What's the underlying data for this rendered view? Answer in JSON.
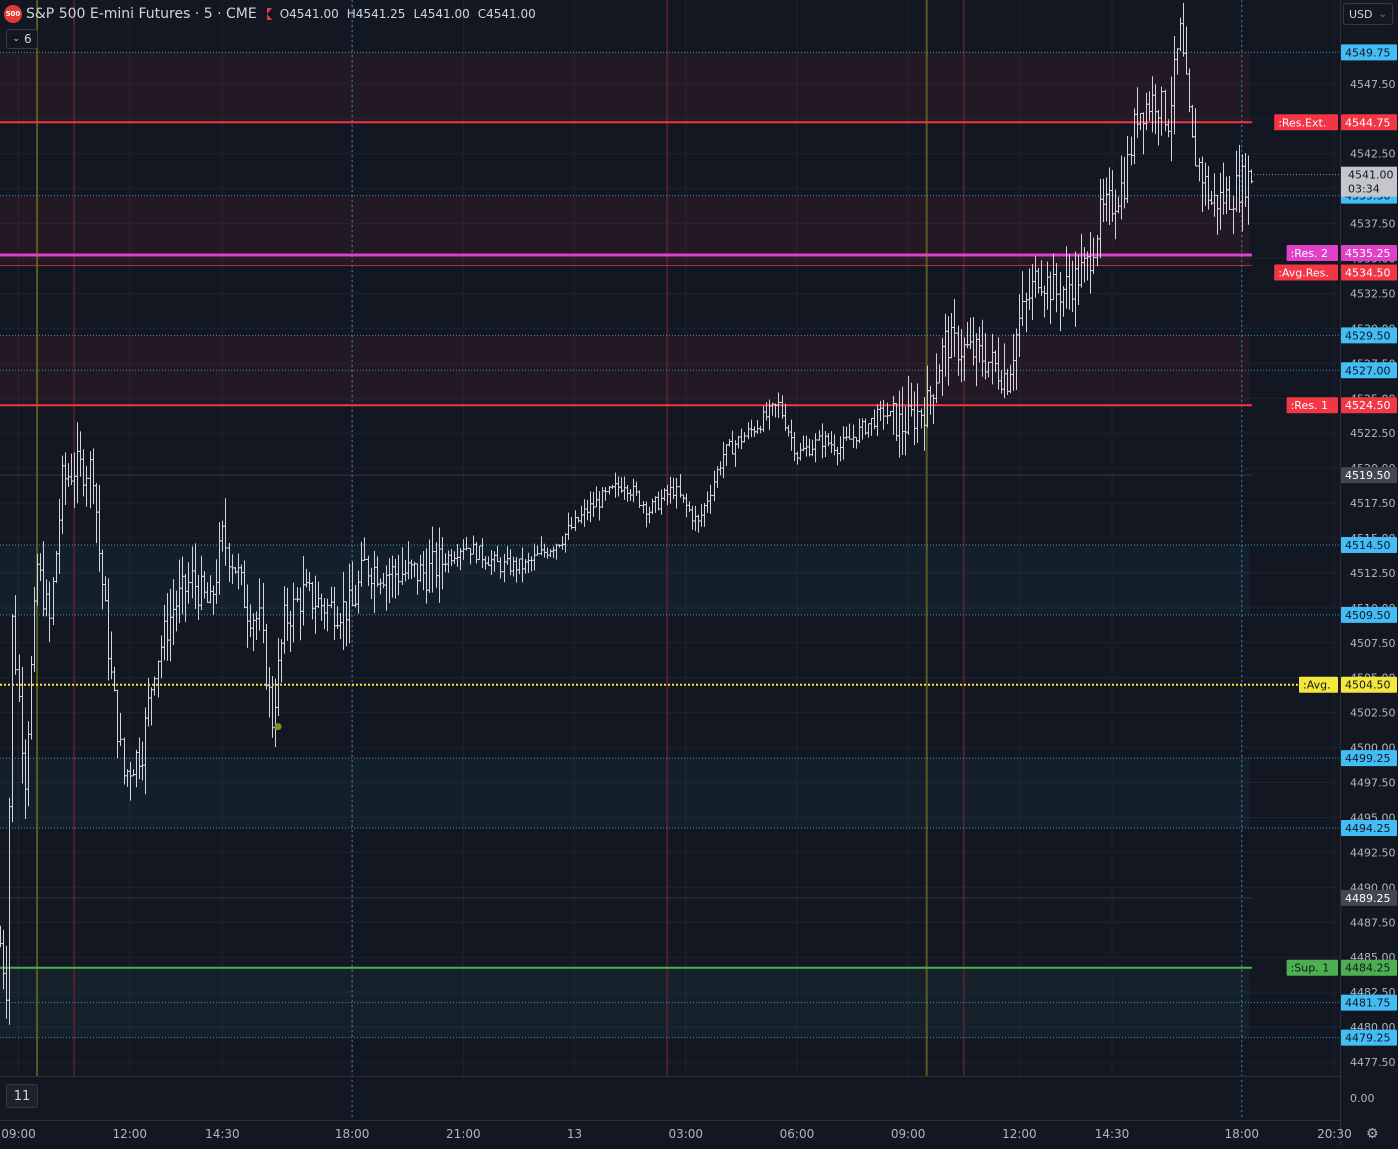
{
  "header": {
    "symbol_badge": "500",
    "title": "S&P 500 E-mini Futures · 5 · CME",
    "ohlc": [
      {
        "k": "O",
        "v": "4541.00"
      },
      {
        "k": "H",
        "v": "4541.25"
      },
      {
        "k": "L",
        "v": "4541.00"
      },
      {
        "k": "C",
        "v": "4541.00"
      }
    ],
    "indicators_toggle": "6",
    "currency": "USD",
    "currency_caret": "⌄"
  },
  "bottom_button": "11",
  "settings_icon": "⚙",
  "chart_data": {
    "type": "bar",
    "subtype": "ohlc",
    "title": "S&P 500 E-mini Futures · 5 · CME",
    "bar_color": "#d1d4dc",
    "ylim": [
      4476.5,
      4553.5
    ],
    "xlim": [
      "08:30",
      "20:30 (day 13)"
    ],
    "x_ticks": [
      "09:00",
      "12:00",
      "14:30",
      "18:00",
      "21:00",
      "13",
      "03:00",
      "06:00",
      "09:00",
      "12:00",
      "14:30",
      "18:00",
      "20:30"
    ],
    "y_ticks": [
      "4477.50",
      "4480.00",
      "4482.50",
      "4485.00",
      "4487.50",
      "4490.00",
      "4492.50",
      "4495.00",
      "4497.50",
      "4500.00",
      "4502.50",
      "4505.00",
      "4507.50",
      "4510.00",
      "4512.50",
      "4515.00",
      "4517.50",
      "4520.00",
      "4522.50",
      "4525.00",
      "4527.50",
      "4530.00",
      "4532.50",
      "4535.00",
      "4537.50",
      "4540.00",
      "4542.50",
      "4545.00",
      "4547.50"
    ],
    "volume_axis_label": "0.00",
    "grid": true,
    "vertical_markers": [
      {
        "x": "09:30",
        "color": "#6b6a1e"
      },
      {
        "x": "10:30",
        "color": "#5a2430"
      },
      {
        "x": "03:00",
        "color": "#5a2430"
      },
      {
        "x": "09:30",
        "color": "#6b6a1e"
      },
      {
        "x": "10:30",
        "color": "#5a2430"
      }
    ],
    "session_dividers": [
      "18:00",
      "18:00"
    ],
    "zones": [
      {
        "from": 4544.75,
        "to": 4549.75,
        "color": "#f23645"
      },
      {
        "from": 4534.5,
        "to": 4539.5,
        "color": "#f23645"
      },
      {
        "from": 4524.5,
        "to": 4529.5,
        "color": "#f23645"
      },
      {
        "from": 4509.5,
        "to": 4514.5,
        "color": "#2a8fb5"
      },
      {
        "from": 4494.25,
        "to": 4499.25,
        "color": "#2a8fb5"
      },
      {
        "from": 4479.25,
        "to": 4484.25,
        "color": "#26a69a"
      }
    ],
    "levels": [
      {
        "value": 4549.75,
        "price_label": "4549.75",
        "color": "#42bdf5",
        "style": "dotted"
      },
      {
        "value": 4544.75,
        "price_label": "4544.75",
        "tag": ":Res.Ext.",
        "color": "#f23645",
        "style": "solid"
      },
      {
        "value": 4539.5,
        "price_label": "4539.50",
        "color": "#42bdf5",
        "style": "dotted"
      },
      {
        "value": 4535.25,
        "price_label": "4535.25",
        "tag": ":Res. 2",
        "color": "#e040c8",
        "style": "solid"
      },
      {
        "value": 4534.5,
        "price_label": "4534.50",
        "tag": ":Avg.Res.",
        "color": "#f23645",
        "style": "thin"
      },
      {
        "value": 4529.5,
        "price_label": "4529.50",
        "color": "#42bdf5",
        "style": "dotted"
      },
      {
        "value": 4527.0,
        "price_label": "4527.00",
        "color": "#42bdf5",
        "style": "dotted"
      },
      {
        "value": 4524.5,
        "price_label": "4524.50",
        "tag": ":Res. 1",
        "color": "#f23645",
        "style": "solid"
      },
      {
        "value": 4519.5,
        "price_label": "4519.50",
        "color": "#434651",
        "style": "thin"
      },
      {
        "value": 4514.5,
        "price_label": "4514.50",
        "color": "#42bdf5",
        "style": "dotted"
      },
      {
        "value": 4509.5,
        "price_label": "4509.50",
        "color": "#42bdf5",
        "style": "dotted"
      },
      {
        "value": 4504.5,
        "price_label": "4504.50",
        "tag": ":Avg.",
        "color": "#f5e63b",
        "style": "dotted"
      },
      {
        "value": 4499.25,
        "price_label": "4499.25",
        "color": "#42bdf5",
        "style": "dotted"
      },
      {
        "value": 4494.25,
        "price_label": "4494.25",
        "color": "#42bdf5",
        "style": "dotted"
      },
      {
        "value": 4489.25,
        "price_label": "4489.25",
        "color": "#434651",
        "style": "thin"
      },
      {
        "value": 4484.25,
        "price_label": "4484.25",
        "tag": ":Sup. 1",
        "color": "#4caf50",
        "style": "solid"
      },
      {
        "value": 4481.75,
        "price_label": "4481.75",
        "color": "#42bdf5",
        "style": "dotted"
      },
      {
        "value": 4479.25,
        "price_label": "4479.25",
        "color": "#42bdf5",
        "style": "dotted"
      }
    ],
    "current_price": {
      "value": 4541.0,
      "label": "4541.00",
      "countdown": "03:34"
    },
    "marker_point": {
      "x": "16:00",
      "y": 4501.5
    },
    "series": [
      {
        "description": "5-minute OHLC bars, approximate close path (09:00 day 12 to 18:15 day 13)",
        "close_path": [
          [
            "08:30",
            4486.0
          ],
          [
            "08:40",
            4483.0
          ],
          [
            "08:50",
            4509.0
          ],
          [
            "09:10",
            4498.0
          ],
          [
            "09:30",
            4513.0
          ],
          [
            "09:50",
            4509.0
          ],
          [
            "10:10",
            4519.0
          ],
          [
            "10:30",
            4520.0
          ],
          [
            "11:00",
            4520.0
          ],
          [
            "11:10",
            4514.0
          ],
          [
            "11:30",
            4505.0
          ],
          [
            "11:50",
            4498.0
          ],
          [
            "12:20",
            4500.0
          ],
          [
            "12:40",
            4506.0
          ],
          [
            "13:10",
            4510.0
          ],
          [
            "13:40",
            4512.0
          ],
          [
            "14:10",
            4510.0
          ],
          [
            "14:30",
            4515.0
          ],
          [
            "14:50",
            4513.0
          ],
          [
            "15:10",
            4510.0
          ],
          [
            "15:30",
            4509.0
          ],
          [
            "15:50",
            4502.0
          ],
          [
            "16:10",
            4509.0
          ],
          [
            "16:40",
            4511.0
          ],
          [
            "17:20",
            4510.0
          ],
          [
            "18:00",
            4510.0
          ],
          [
            "18:20",
            4513.0
          ],
          [
            "19:00",
            4512.5
          ],
          [
            "20:00",
            4512.5
          ],
          [
            "21:00",
            4514.5
          ],
          [
            "22:00",
            4513.0
          ],
          [
            "22:40",
            4513.0
          ],
          [
            "23:40",
            4515.0
          ],
          [
            "00:20",
            4517.0
          ],
          [
            "01:20",
            4519.0
          ],
          [
            "02:00",
            4517.0
          ],
          [
            "02:40",
            4518.5
          ],
          [
            "03:20",
            4516.0
          ],
          [
            "04:00",
            4521.0
          ],
          [
            "04:40",
            4522.5
          ],
          [
            "05:30",
            4524.5
          ],
          [
            "06:00",
            4521.0
          ],
          [
            "06:40",
            4522.0
          ],
          [
            "07:10",
            4521.5
          ],
          [
            "07:50",
            4523.0
          ],
          [
            "08:20",
            4524.0
          ],
          [
            "08:50",
            4523.0
          ],
          [
            "09:30",
            4524.5
          ],
          [
            "10:00",
            4529.0
          ],
          [
            "10:30",
            4528.5
          ],
          [
            "11:00",
            4528.0
          ],
          [
            "11:40",
            4526.5
          ],
          [
            "12:00",
            4530.5
          ],
          [
            "12:30",
            4534.0
          ],
          [
            "13:00",
            4532.5
          ],
          [
            "13:30",
            4533.5
          ],
          [
            "13:50",
            4534.5
          ],
          [
            "14:10",
            4538.0
          ],
          [
            "14:30",
            4539.0
          ],
          [
            "14:50",
            4540.5
          ],
          [
            "15:10",
            4545.5
          ],
          [
            "15:40",
            4546.5
          ],
          [
            "16:00",
            4545.0
          ],
          [
            "16:20",
            4551.0
          ],
          [
            "16:40",
            4543.0
          ],
          [
            "17:10",
            4539.0
          ],
          [
            "17:40",
            4539.5
          ],
          [
            "18:00",
            4540.5
          ],
          [
            "18:15",
            4541.0
          ]
        ]
      }
    ]
  }
}
